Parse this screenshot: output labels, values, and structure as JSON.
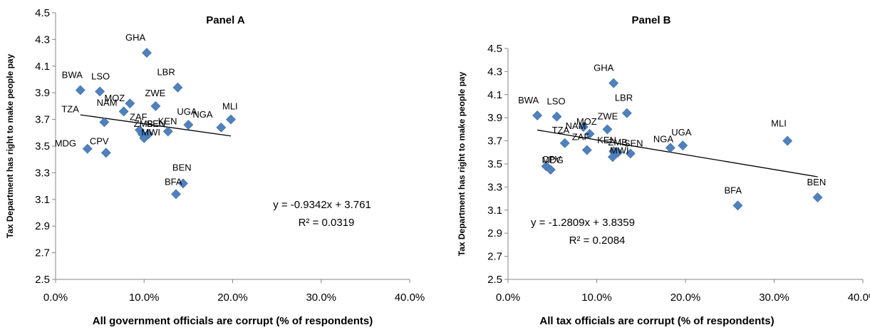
{
  "chart_data": [
    {
      "type": "scatter",
      "title": "Panel A",
      "xlabel": "All government officials  are corrupt  (% of respondents)",
      "ylabel": "Tax Department has right to make people pay",
      "xlim": [
        0,
        0.4
      ],
      "ylim": [
        2.5,
        4.5
      ],
      "xticks": [
        "0.0%",
        "10.0%",
        "20.0%",
        "30.0%",
        "40.0%"
      ],
      "yticks": [
        "2.5",
        "2.7",
        "2.9",
        "3.1",
        "3.3",
        "3.5",
        "3.7",
        "3.9",
        "4.1",
        "4.3",
        "4.5"
      ],
      "marker_color": "#4f81bd",
      "points": [
        {
          "label": "BWA",
          "x": 0.028,
          "y": 3.92
        },
        {
          "label": "LSO",
          "x": 0.05,
          "y": 3.91
        },
        {
          "label": "GHA",
          "x": 0.103,
          "y": 4.2
        },
        {
          "label": "LBR",
          "x": 0.138,
          "y": 3.94
        },
        {
          "label": "MOZ",
          "x": 0.084,
          "y": 3.82
        },
        {
          "label": "ZWE",
          "x": 0.113,
          "y": 3.8
        },
        {
          "label": "NAM",
          "x": 0.077,
          "y": 3.76
        },
        {
          "label": "TZA",
          "x": 0.055,
          "y": 3.68
        },
        {
          "label": "UGA",
          "x": 0.15,
          "y": 3.66
        },
        {
          "label": "MLI",
          "x": 0.198,
          "y": 3.7
        },
        {
          "label": "NGA",
          "x": 0.187,
          "y": 3.64
        },
        {
          "label": "ZAF",
          "x": 0.095,
          "y": 3.62
        },
        {
          "label": "ZMB",
          "x": 0.098,
          "y": 3.59
        },
        {
          "label": "SEN",
          "x": 0.105,
          "y": 3.59
        },
        {
          "label": "KEN",
          "x": 0.127,
          "y": 3.61
        },
        {
          "label": "MWI",
          "x": 0.1,
          "y": 3.56
        },
        {
          "label": "MDG",
          "x": 0.036,
          "y": 3.48
        },
        {
          "label": "CPV",
          "x": 0.057,
          "y": 3.45
        },
        {
          "label": "BEN",
          "x": 0.144,
          "y": 3.22
        },
        {
          "label": "BFA",
          "x": 0.136,
          "y": 3.14
        }
      ],
      "trendline": {
        "slope": -0.9342,
        "intercept": 3.761,
        "x_range": [
          0.028,
          0.198
        ]
      },
      "equation": "y = -0.9342x + 3.761",
      "r2": "R² = 0.0319"
    },
    {
      "type": "scatter",
      "title": "Panel B",
      "xlabel": "All tax officials  are corrupt  (% of respondents)",
      "ylabel": "Tax Department has right to make people pay",
      "xlim": [
        0,
        0.4
      ],
      "ylim": [
        2.5,
        4.5
      ],
      "xticks": [
        "0.0%",
        "10.0%",
        "20.0%",
        "30.0%",
        "40.0%"
      ],
      "yticks": [
        "2.5",
        "2.7",
        "2.9",
        "3.1",
        "3.3",
        "3.5",
        "3.7",
        "3.9",
        "4.1",
        "4.3",
        "4.5"
      ],
      "marker_color": "#4f81bd",
      "points": [
        {
          "label": "BWA",
          "x": 0.033,
          "y": 3.92
        },
        {
          "label": "LSO",
          "x": 0.055,
          "y": 3.91
        },
        {
          "label": "GHA",
          "x": 0.119,
          "y": 4.2
        },
        {
          "label": "LBR",
          "x": 0.134,
          "y": 3.94
        },
        {
          "label": "MOZ",
          "x": 0.085,
          "y": 3.82
        },
        {
          "label": "ZWE",
          "x": 0.112,
          "y": 3.8
        },
        {
          "label": "NAM",
          "x": 0.092,
          "y": 3.76
        },
        {
          "label": "TZA",
          "x": 0.064,
          "y": 3.68
        },
        {
          "label": "UGA",
          "x": 0.197,
          "y": 3.66
        },
        {
          "label": "NGA",
          "x": 0.183,
          "y": 3.64
        },
        {
          "label": "MLI",
          "x": 0.315,
          "y": 3.7
        },
        {
          "label": "ZAF",
          "x": 0.089,
          "y": 3.62
        },
        {
          "label": "KEN",
          "x": 0.119,
          "y": 3.61
        },
        {
          "label": "ZMB",
          "x": 0.124,
          "y": 3.6
        },
        {
          "label": "SEN",
          "x": 0.138,
          "y": 3.59
        },
        {
          "label": "MWI",
          "x": 0.118,
          "y": 3.56
        },
        {
          "label": "MDG",
          "x": 0.043,
          "y": 3.48
        },
        {
          "label": "CPV",
          "x": 0.048,
          "y": 3.45
        },
        {
          "label": "BFA",
          "x": 0.259,
          "y": 3.14
        },
        {
          "label": "BEN",
          "x": 0.349,
          "y": 3.21
        }
      ],
      "trendline": {
        "slope": -1.2809,
        "intercept": 3.8359,
        "x_range": [
          0.033,
          0.349
        ]
      },
      "equation": "y = -1.2809x + 3.8359",
      "r2": "R² = 0.2084"
    }
  ]
}
